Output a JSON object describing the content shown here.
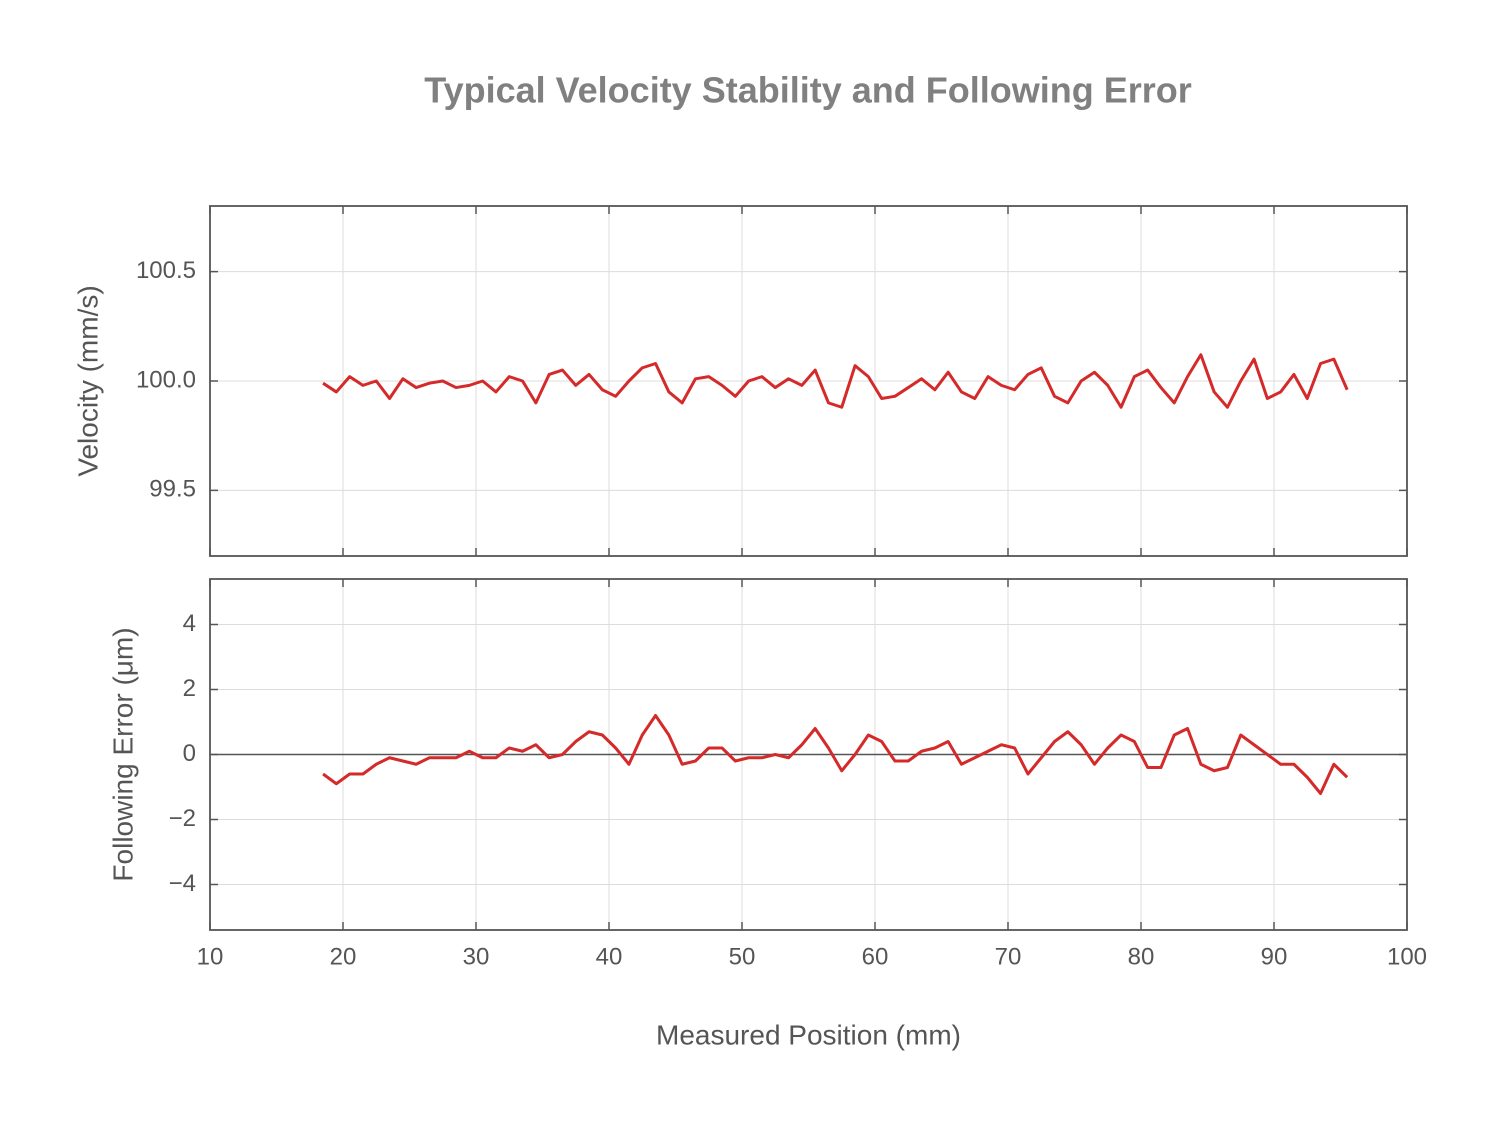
{
  "title": "Typical Velocity Stability and Following Error",
  "chart_data": [
    {
      "type": "line",
      "ylabel": "Velocity (mm/s)",
      "color": "#d42a2a",
      "x": [
        18.5,
        19.5,
        20.5,
        21.5,
        22.5,
        23.5,
        24.5,
        25.5,
        26.5,
        27.5,
        28.5,
        29.5,
        30.5,
        31.5,
        32.5,
        33.5,
        34.5,
        35.5,
        36.5,
        37.5,
        38.5,
        39.5,
        40.5,
        41.5,
        42.5,
        43.5,
        44.5,
        45.5,
        46.5,
        47.5,
        48.5,
        49.5,
        50.5,
        51.5,
        52.5,
        53.5,
        54.5,
        55.5,
        56.5,
        57.5,
        58.5,
        59.5,
        60.5,
        61.5,
        62.5,
        63.5,
        64.5,
        65.5,
        66.5,
        67.5,
        68.5,
        69.5,
        70.5,
        71.5,
        72.5,
        73.5,
        74.5,
        75.5,
        76.5,
        77.5,
        78.5,
        79.5,
        80.5,
        81.5,
        82.5,
        83.5,
        84.5,
        85.5,
        86.5,
        87.5,
        88.5,
        89.5,
        90.5,
        91.5,
        92.5,
        93.5,
        94.5,
        95.5
      ],
      "values": [
        99.99,
        99.95,
        100.02,
        99.98,
        100.0,
        99.92,
        100.01,
        99.97,
        99.99,
        100.0,
        99.97,
        99.98,
        100.0,
        99.95,
        100.02,
        100.0,
        99.9,
        100.03,
        100.05,
        99.98,
        100.03,
        99.96,
        99.93,
        100.0,
        100.06,
        100.08,
        99.95,
        99.9,
        100.01,
        100.02,
        99.98,
        99.93,
        100.0,
        100.02,
        99.97,
        100.01,
        99.98,
        100.05,
        99.9,
        99.88,
        100.07,
        100.02,
        99.92,
        99.93,
        99.97,
        100.01,
        99.96,
        100.04,
        99.95,
        99.92,
        100.02,
        99.98,
        99.96,
        100.03,
        100.06,
        99.93,
        99.9,
        100.0,
        100.04,
        99.98,
        99.88,
        100.02,
        100.05,
        99.97,
        99.9,
        100.02,
        100.12,
        99.95,
        99.88,
        100.0,
        100.1,
        99.92,
        99.95,
        100.03,
        99.92,
        100.08,
        100.1,
        99.96
      ],
      "xlim": [
        10,
        100
      ],
      "xticks": [
        10,
        20,
        30,
        40,
        50,
        60,
        70,
        80,
        90,
        100
      ],
      "xticklabels": false,
      "ylim": [
        99.2,
        100.8
      ],
      "yticks": [
        99.5,
        {
          "value": 100,
          "label": "100.0"
        },
        100.5
      ],
      "grid": true
    },
    {
      "type": "line",
      "xlabel": "Measured Position (mm)",
      "ylabel": "Following Error (μm)",
      "color": "#d42a2a",
      "x": [
        18.5,
        19.5,
        20.5,
        21.5,
        22.5,
        23.5,
        24.5,
        25.5,
        26.5,
        27.5,
        28.5,
        29.5,
        30.5,
        31.5,
        32.5,
        33.5,
        34.5,
        35.5,
        36.5,
        37.5,
        38.5,
        39.5,
        40.5,
        41.5,
        42.5,
        43.5,
        44.5,
        45.5,
        46.5,
        47.5,
        48.5,
        49.5,
        50.5,
        51.5,
        52.5,
        53.5,
        54.5,
        55.5,
        56.5,
        57.5,
        58.5,
        59.5,
        60.5,
        61.5,
        62.5,
        63.5,
        64.5,
        65.5,
        66.5,
        67.5,
        68.5,
        69.5,
        70.5,
        71.5,
        72.5,
        73.5,
        74.5,
        75.5,
        76.5,
        77.5,
        78.5,
        79.5,
        80.5,
        81.5,
        82.5,
        83.5,
        84.5,
        85.5,
        86.5,
        87.5,
        88.5,
        89.5,
        90.5,
        91.5,
        92.5,
        93.5,
        94.5,
        95.5
      ],
      "values": [
        -0.6,
        -0.9,
        -0.6,
        -0.6,
        -0.3,
        -0.1,
        -0.2,
        -0.3,
        -0.1,
        -0.1,
        -0.1,
        0.1,
        -0.1,
        -0.1,
        0.2,
        0.1,
        0.3,
        -0.1,
        0.0,
        0.4,
        0.7,
        0.6,
        0.2,
        -0.3,
        0.6,
        1.2,
        0.6,
        -0.3,
        -0.2,
        0.2,
        0.2,
        -0.2,
        -0.1,
        -0.1,
        0.0,
        -0.1,
        0.3,
        0.8,
        0.2,
        -0.5,
        0.0,
        0.6,
        0.4,
        -0.2,
        -0.2,
        0.1,
        0.2,
        0.4,
        -0.3,
        -0.1,
        0.1,
        0.3,
        0.2,
        -0.6,
        -0.1,
        0.4,
        0.7,
        0.3,
        -0.3,
        0.2,
        0.6,
        0.4,
        -0.4,
        -0.4,
        0.6,
        0.8,
        -0.3,
        -0.5,
        -0.4,
        0.6,
        0.3,
        0.0,
        -0.3,
        -0.3,
        -0.7,
        -1.2,
        -0.3,
        -0.7
      ],
      "xlim": [
        10,
        100
      ],
      "xticks": [
        10,
        20,
        30,
        40,
        50,
        60,
        70,
        80,
        90,
        100
      ],
      "xticklabels": true,
      "ylim": [
        -5.4,
        5.4
      ],
      "yticks": [
        {
          "value": -4,
          "label": "−4"
        },
        {
          "value": -2,
          "label": "−2"
        },
        0,
        2,
        4
      ],
      "grid": true,
      "zero_line": true
    }
  ]
}
